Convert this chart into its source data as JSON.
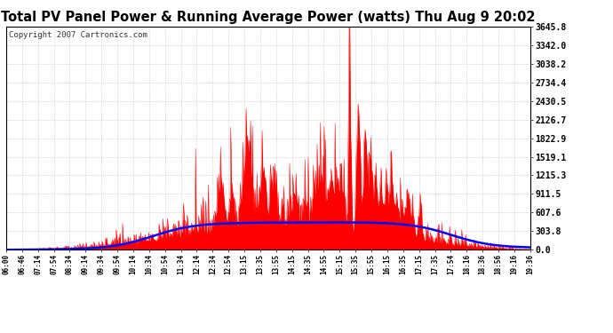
{
  "title": "Total PV Panel Power & Running Average Power (watts) Thu Aug 9 20:02",
  "copyright": "Copyright 2007 Cartronics.com",
  "ylabel_values": [
    0.0,
    303.8,
    607.6,
    911.5,
    1215.3,
    1519.1,
    1822.9,
    2126.7,
    2430.5,
    2734.4,
    3038.2,
    3342.0,
    3645.8
  ],
  "ymax": 3645.8,
  "ymin": 0.0,
  "bg_color": "#ffffff",
  "grid_color": "#bbbbbb",
  "fill_color": "#ff0000",
  "line_color": "#0000ff",
  "title_fontsize": 10.5,
  "copyright_fontsize": 6.5,
  "x_tick_labels": [
    "06:00",
    "06:46",
    "07:14",
    "07:54",
    "08:34",
    "09:14",
    "09:34",
    "09:54",
    "10:14",
    "10:34",
    "10:54",
    "11:34",
    "12:14",
    "12:34",
    "12:54",
    "13:15",
    "13:35",
    "13:55",
    "14:15",
    "14:35",
    "14:55",
    "15:15",
    "15:35",
    "15:55",
    "16:15",
    "16:35",
    "17:15",
    "17:35",
    "17:54",
    "18:16",
    "18:36",
    "18:56",
    "19:16",
    "19:36"
  ]
}
